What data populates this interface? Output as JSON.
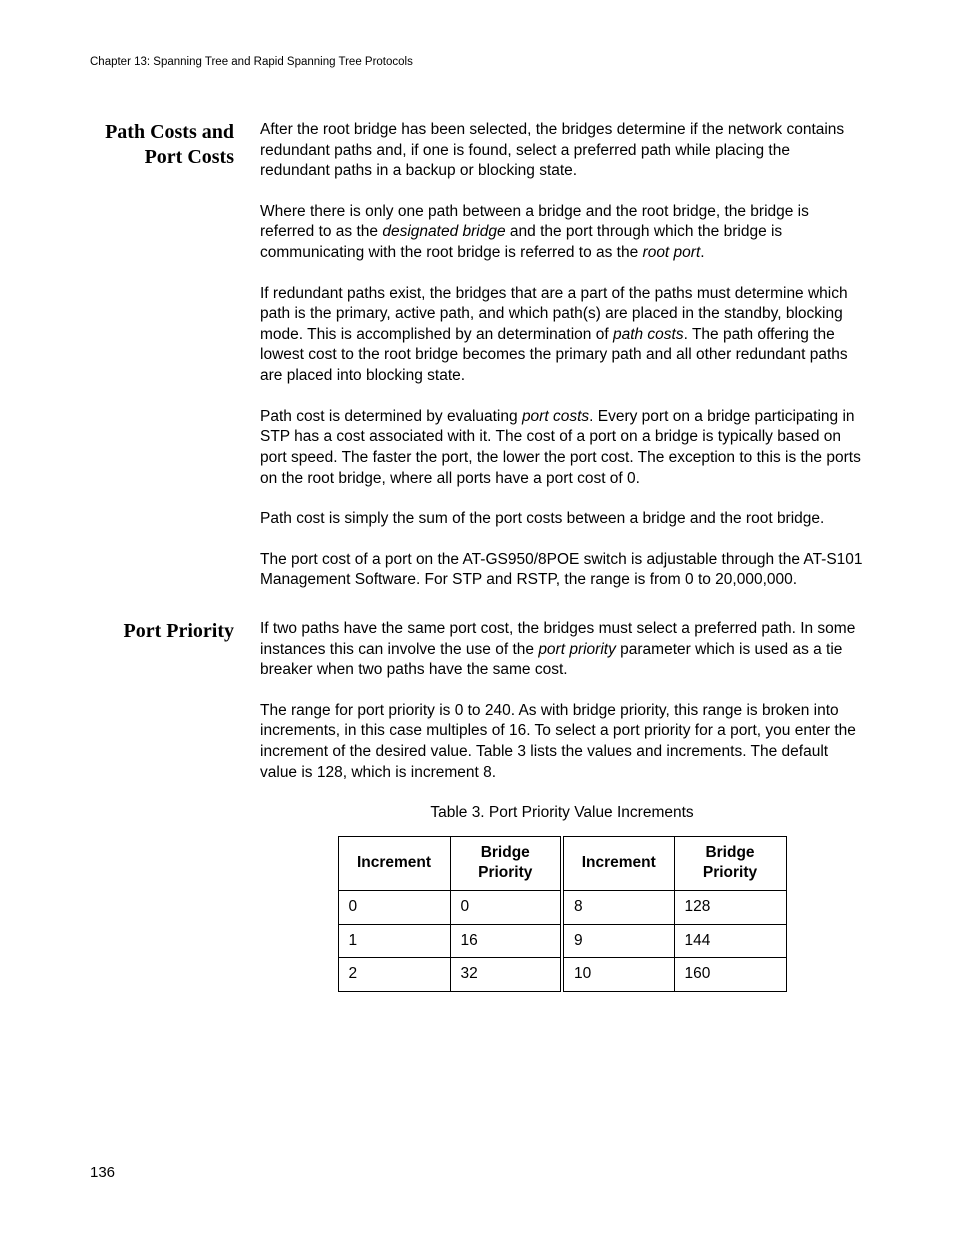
{
  "header": {
    "running": "Chapter 13: Spanning Tree and Rapid Spanning Tree Protocols"
  },
  "sections": {
    "pathCosts": {
      "heading_line1": "Path Costs and",
      "heading_line2": "Port Costs",
      "p1a": "After the root bridge has been selected, the bridges determine if the network contains redundant paths and, if one is found, select a preferred path while placing the redundant paths in a backup or blocking state.",
      "p2a": "Where there is only one path between a bridge and the root bridge, the bridge is referred to as the ",
      "p2i1": "designated bridge",
      "p2b": " and the port through which the bridge is communicating with the root bridge is referred to as the ",
      "p2i2": "root port",
      "p2c": ".",
      "p3a": "If redundant paths exist, the bridges that are a part of the paths must determine which path is the primary, active path, and which path(s) are placed in the standby, blocking mode. This is accomplished by an determination of ",
      "p3i1": "path costs",
      "p3b": ". The path offering the lowest cost to the root bridge becomes the primary path and all other redundant paths are placed into blocking state.",
      "p4a": "Path cost is determined by evaluating ",
      "p4i1": "port costs",
      "p4b": ". Every port on a bridge participating in STP has a cost associated with it. The cost of a port on a bridge is typically based on port speed. The faster the port, the lower the port cost. The exception to this is the ports on the root bridge, where all ports have a port cost of 0.",
      "p5": "Path cost is simply the sum of the port costs between a bridge and the root bridge.",
      "p6": "The port cost of a port on the AT-GS950/8POE switch is adjustable through the AT-S101 Management Software. For STP and RSTP, the range is from 0 to 20,000,000."
    },
    "portPriority": {
      "heading": "Port Priority",
      "p1a": "If two paths have the same port cost, the bridges must select a preferred path. In some instances this can involve the use of the ",
      "p1i1": "port priority",
      "p1b": " parameter which is used as a tie breaker when two paths have the same cost.",
      "p2": "The range for port priority is 0 to 240. As with bridge priority, this range is broken into increments, in this case multiples of 16. To select a port priority for a port, you enter the increment of the desired value. Table 3 lists the values and increments. The default value is 128, which is increment 8."
    }
  },
  "table": {
    "caption": "Table 3. Port Priority Value Increments",
    "headers": {
      "increment": "Increment",
      "priority_l1": "Bridge",
      "priority_l2": "Priority"
    },
    "rows": [
      {
        "inc1": "0",
        "bp1": "0",
        "inc2": "8",
        "bp2": "128"
      },
      {
        "inc1": "1",
        "bp1": "16",
        "inc2": "9",
        "bp2": "144"
      },
      {
        "inc1": "2",
        "bp1": "32",
        "inc2": "10",
        "bp2": "160"
      }
    ]
  },
  "pageNumber": "136"
}
